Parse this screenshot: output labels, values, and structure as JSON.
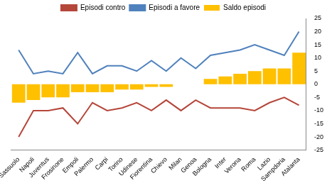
{
  "chart_data": {
    "type": "bar",
    "categories": [
      "Sassuolo",
      "Napoli",
      "Juventus",
      "Frosinone",
      "Empoli",
      "Palermo",
      "Carpi",
      "Torino",
      "Udinese",
      "Fiorentina",
      "Chievo",
      "Milan",
      "Genoa",
      "Bologna",
      "Inter",
      "Verona",
      "Roma",
      "Lazio",
      "Sampdoria",
      "Atalanta"
    ],
    "series": [
      {
        "name": "Saldo episodi",
        "type": "bar",
        "color": "#ffc000",
        "values": [
          -7,
          -6,
          -5,
          -5,
          -3,
          -3,
          -3,
          -2,
          -2,
          -1,
          -1,
          0,
          0,
          2,
          3,
          4,
          5,
          6,
          6,
          12
        ]
      },
      {
        "name": "Episodi contro",
        "type": "line",
        "color": "#b5463a",
        "values": [
          -20,
          -10,
          -10,
          -9,
          -15,
          -7,
          -10,
          -9,
          -7,
          -10,
          -6,
          -10,
          -6,
          -9,
          -9,
          -9,
          -10,
          -7,
          -5,
          -8
        ]
      },
      {
        "name": "Episodi a favore",
        "type": "line",
        "color": "#4f81bd",
        "values": [
          13,
          4,
          5,
          4,
          12,
          4,
          7,
          7,
          5,
          9,
          5,
          10,
          6,
          11,
          12,
          13,
          15,
          13,
          11,
          20
        ]
      }
    ],
    "ylim": [
      -25,
      25
    ],
    "yticks": [
      -25,
      -20,
      -15,
      -10,
      -5,
      0,
      5,
      10,
      15,
      20,
      25
    ],
    "grid": false,
    "legend": "top"
  }
}
